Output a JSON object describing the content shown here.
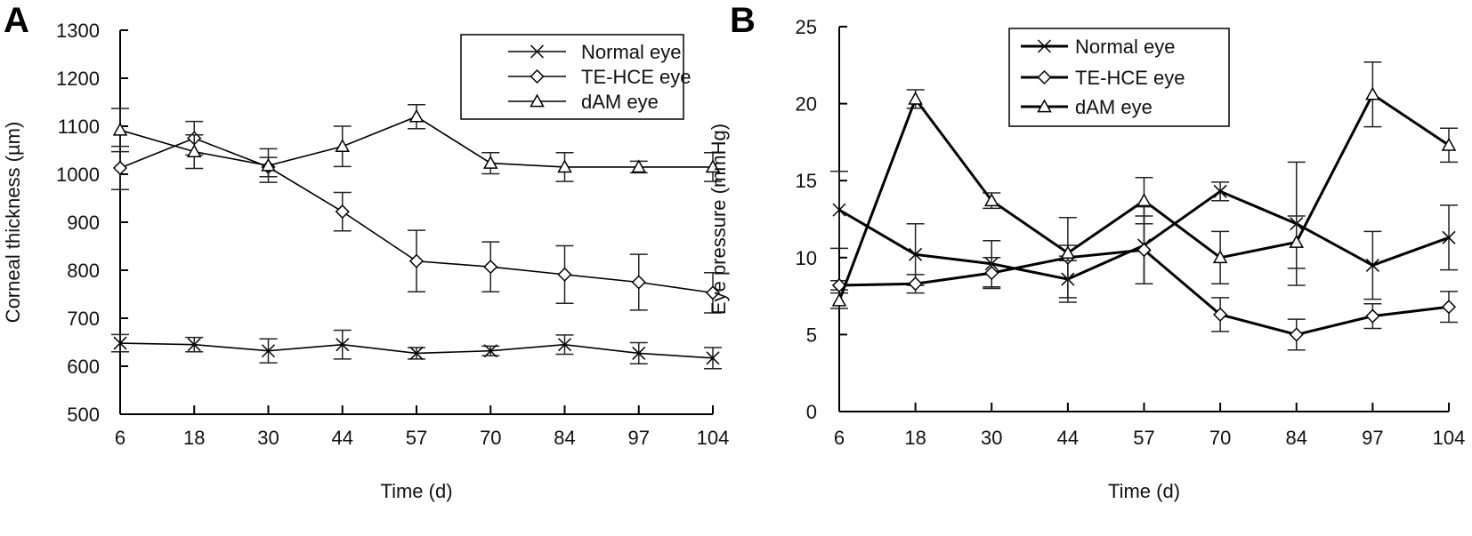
{
  "figure": {
    "panels": [
      "A",
      "B"
    ]
  },
  "chart_data": [
    {
      "panel": "A",
      "type": "line",
      "title": "",
      "xlabel": "Time (d)",
      "ylabel": "Corneal thickness (µm)",
      "x": [
        6,
        18,
        30,
        44,
        57,
        70,
        84,
        97,
        104
      ],
      "x_tick_labels": [
        "6",
        "18",
        "30",
        "44",
        "57",
        "70",
        "84",
        "97",
        "104"
      ],
      "ylim": [
        500,
        1300
      ],
      "y_ticks": [
        500,
        600,
        700,
        800,
        900,
        1000,
        1100,
        1200,
        1300
      ],
      "grid": false,
      "legend_position": "top-right",
      "series": [
        {
          "name": "Normal eye",
          "marker": "x",
          "values": [
            648,
            645,
            632,
            645,
            627,
            632,
            645,
            627,
            617
          ],
          "errors": [
            18,
            15,
            25,
            30,
            12,
            10,
            20,
            22,
            22
          ]
        },
        {
          "name": "TE-HCE eye",
          "marker": "diamond",
          "values": [
            1013,
            1075,
            1015,
            922,
            819,
            807,
            791,
            775,
            753
          ],
          "errors": [
            45,
            35,
            20,
            40,
            64,
            52,
            60,
            58,
            42
          ]
        },
        {
          "name": "dAM eye",
          "marker": "triangle",
          "values": [
            1092,
            1047,
            1018,
            1058,
            1120,
            1023,
            1015,
            1015,
            1015
          ],
          "errors": [
            45,
            35,
            35,
            42,
            25,
            22,
            30,
            12,
            30
          ]
        }
      ]
    },
    {
      "panel": "B",
      "type": "line",
      "title": "",
      "xlabel": "Time (d)",
      "ylabel": "Eye pressure (mmHg)",
      "x": [
        6,
        18,
        30,
        44,
        57,
        70,
        84,
        97,
        104
      ],
      "x_tick_labels": [
        "6",
        "18",
        "30",
        "44",
        "57",
        "70",
        "84",
        "97",
        "104"
      ],
      "ylim": [
        0,
        25
      ],
      "y_ticks": [
        0,
        5,
        10,
        15,
        20,
        25
      ],
      "grid": false,
      "legend_position": "top-right",
      "series": [
        {
          "name": "Normal eye",
          "marker": "x",
          "values": [
            13.1,
            10.2,
            9.6,
            8.6,
            10.8,
            14.3,
            12.2,
            9.5,
            11.3
          ],
          "errors": [
            2.5,
            2.0,
            1.5,
            1.5,
            2.5,
            0.6,
            4.0,
            2.2,
            2.1
          ]
        },
        {
          "name": "TE-HCE eye",
          "marker": "diamond",
          "values": [
            8.2,
            8.3,
            9.0,
            10.0,
            10.5,
            6.3,
            5.0,
            6.2,
            6.8
          ],
          "errors": [
            0.3,
            0.6,
            1.0,
            2.6,
            2.2,
            1.1,
            1.0,
            0.8,
            1.0
          ]
        },
        {
          "name": "dAM eye",
          "marker": "triangle",
          "values": [
            7.2,
            20.3,
            13.7,
            10.3,
            13.7,
            10.0,
            11.0,
            20.6,
            17.3
          ],
          "errors": [
            0.5,
            0.6,
            0.5,
            0.5,
            1.5,
            1.7,
            1.7,
            2.1,
            1.1
          ]
        }
      ]
    }
  ]
}
